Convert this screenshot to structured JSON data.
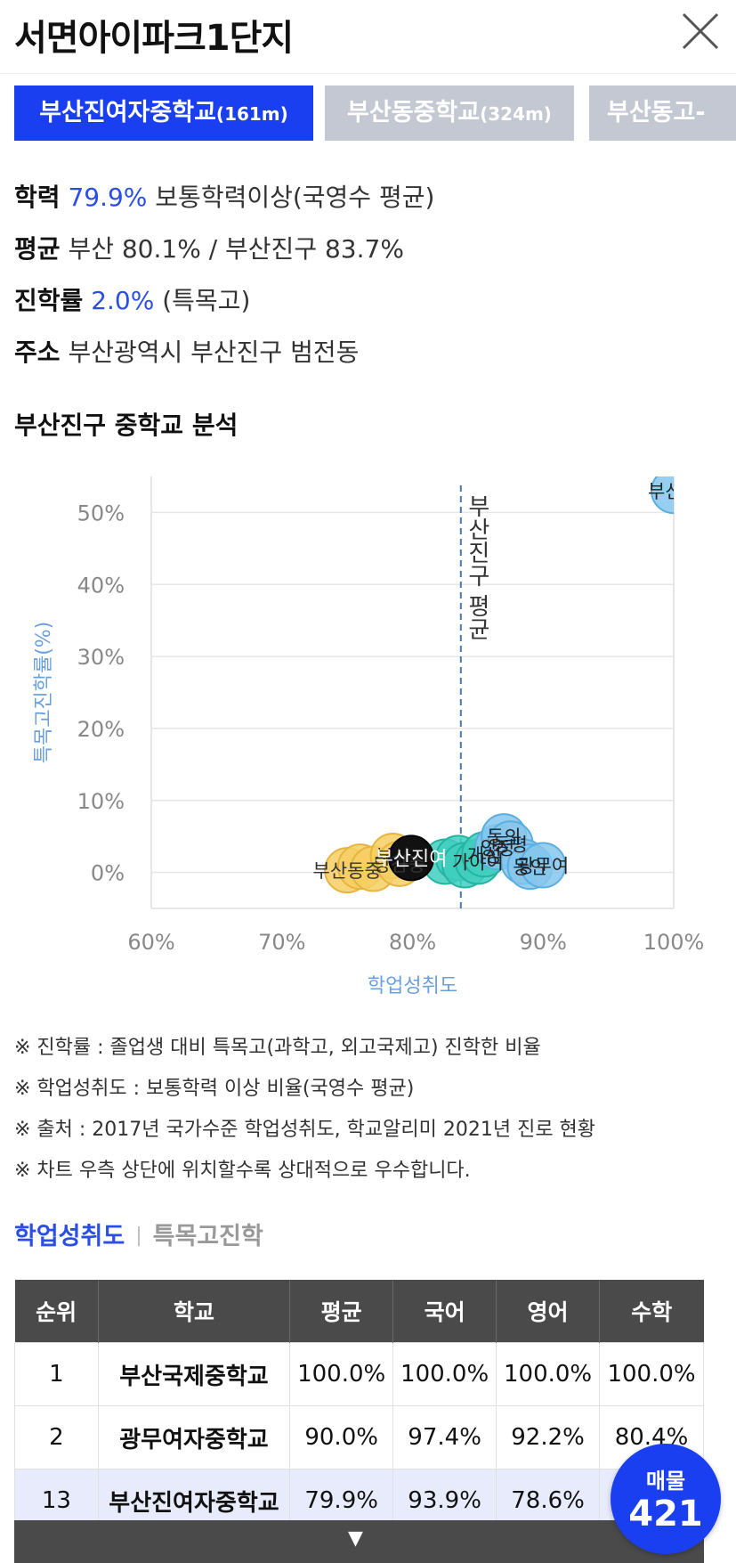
{
  "header": {
    "title": "서면아이파크1단지",
    "close_icon": "close-icon"
  },
  "tabs": [
    {
      "name": "부산진여자중학교",
      "dist": "(161m)"
    },
    {
      "name": "부산동중학교",
      "dist": "(324m)"
    },
    {
      "name": "부산동고-",
      "dist": ""
    }
  ],
  "info": {
    "achievement_label": "학력",
    "achievement_value": "79.9%",
    "achievement_desc": "보통학력이상(국영수 평균)",
    "average_label": "평균",
    "average_value": "부산 80.1% / 부산진구 83.7%",
    "rate_label": "진학률",
    "rate_value": "2.0%",
    "rate_desc": "(특목고)",
    "address_label": "주소",
    "address_value": "부산광역시 부산진구 범전동"
  },
  "section_title": "부산진구 중학교 분석",
  "chart_data": {
    "type": "scatter",
    "xlabel": "학업성취도",
    "ylabel": "특목고진학률(%)",
    "x_ticks": [
      "60%",
      "70%",
      "80%",
      "90%",
      "100%"
    ],
    "y_ticks": [
      "0%",
      "10%",
      "20%",
      "30%",
      "40%",
      "50%"
    ],
    "xlim": [
      60,
      100
    ],
    "ylim": [
      -5,
      55
    ],
    "reference_line": {
      "x": 83.7,
      "label": "부산진구 평균"
    },
    "points": [
      {
        "x": 75,
        "y": 0.3,
        "label": "부산동중",
        "group": "below"
      },
      {
        "x": 76,
        "y": 0.8,
        "label": "",
        "group": "below"
      },
      {
        "x": 77,
        "y": 0.5,
        "label": "",
        "group": "below"
      },
      {
        "x": 78.5,
        "y": 2.3,
        "label": "부산",
        "group": "below"
      },
      {
        "x": 79,
        "y": 1.2,
        "label": "당감중",
        "group": "below"
      },
      {
        "x": 79.9,
        "y": 2.0,
        "label": "부산진여",
        "group": "selected"
      },
      {
        "x": 82.5,
        "y": 1.5,
        "label": "",
        "group": "near"
      },
      {
        "x": 83.5,
        "y": 2.0,
        "label": "",
        "group": "near"
      },
      {
        "x": 84,
        "y": 1.0,
        "label": "",
        "group": "near"
      },
      {
        "x": 85,
        "y": 1.5,
        "label": "가야여",
        "group": "near"
      },
      {
        "x": 85.5,
        "y": 2.5,
        "label": "개성",
        "group": "near"
      },
      {
        "x": 86.5,
        "y": 3.5,
        "label": "양정",
        "group": "above"
      },
      {
        "x": 87,
        "y": 5.0,
        "label": "동의",
        "group": "above"
      },
      {
        "x": 87.5,
        "y": 4.0,
        "label": "동평",
        "group": "above"
      },
      {
        "x": 88.5,
        "y": 1.5,
        "label": "",
        "group": "above"
      },
      {
        "x": 89,
        "y": 0.8,
        "label": "동인",
        "group": "above"
      },
      {
        "x": 90,
        "y": 1.0,
        "label": "광무여",
        "group": "above"
      },
      {
        "x": 100,
        "y": 53,
        "label": "부산국",
        "group": "above"
      }
    ]
  },
  "notes": [
    "※ 진학률 : 졸업생 대비 특목고(과학고, 외고국제고) 진학한 비율",
    "※ 학업성취도 : 보통학력 이상 비율(국영수 평균)",
    "※ 출처 : 2017년 국가수준 학업성취도, 학교알리미 2021년 진로 현황",
    "※ 차트 우측 상단에 위치할수록 상대적으로 우수합니다."
  ],
  "subtabs": {
    "active": "학업성취도",
    "sep": "|",
    "inactive": "특목고진학"
  },
  "table": {
    "headers": [
      "순위",
      "학교",
      "평균",
      "국어",
      "영어",
      "수학"
    ],
    "rows": [
      [
        "1",
        "부산국제중학교",
        "100.0%",
        "100.0%",
        "100.0%",
        "100.0%"
      ],
      [
        "2",
        "광무여자중학교",
        "90.0%",
        "97.4%",
        "92.2%",
        "80.4%"
      ],
      [
        "13",
        "부산진여자중학교",
        "79.9%",
        "93.9%",
        "78.6%",
        ""
      ]
    ]
  },
  "more_icon": "▼",
  "fab": {
    "label": "매물",
    "count": "421"
  }
}
